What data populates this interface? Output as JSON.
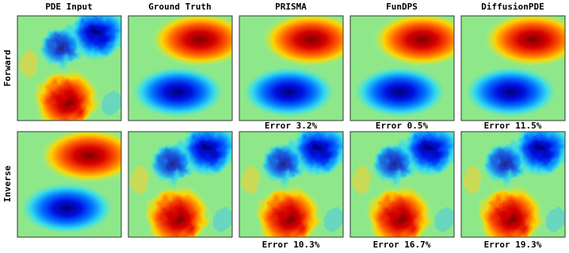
{
  "columns": [
    "PDE Input",
    "Ground Truth",
    "PRISMA",
    "FunDPS",
    "DiffusionPDE"
  ],
  "rows": [
    {
      "label": "Forward",
      "errors": [
        "Error 3.2%",
        "Error 0.5%",
        "Error 11.5%"
      ]
    },
    {
      "label": "Inverse",
      "errors": [
        "Error 10.3%",
        "Error 16.7%",
        "Error 19.3%"
      ]
    }
  ]
}
